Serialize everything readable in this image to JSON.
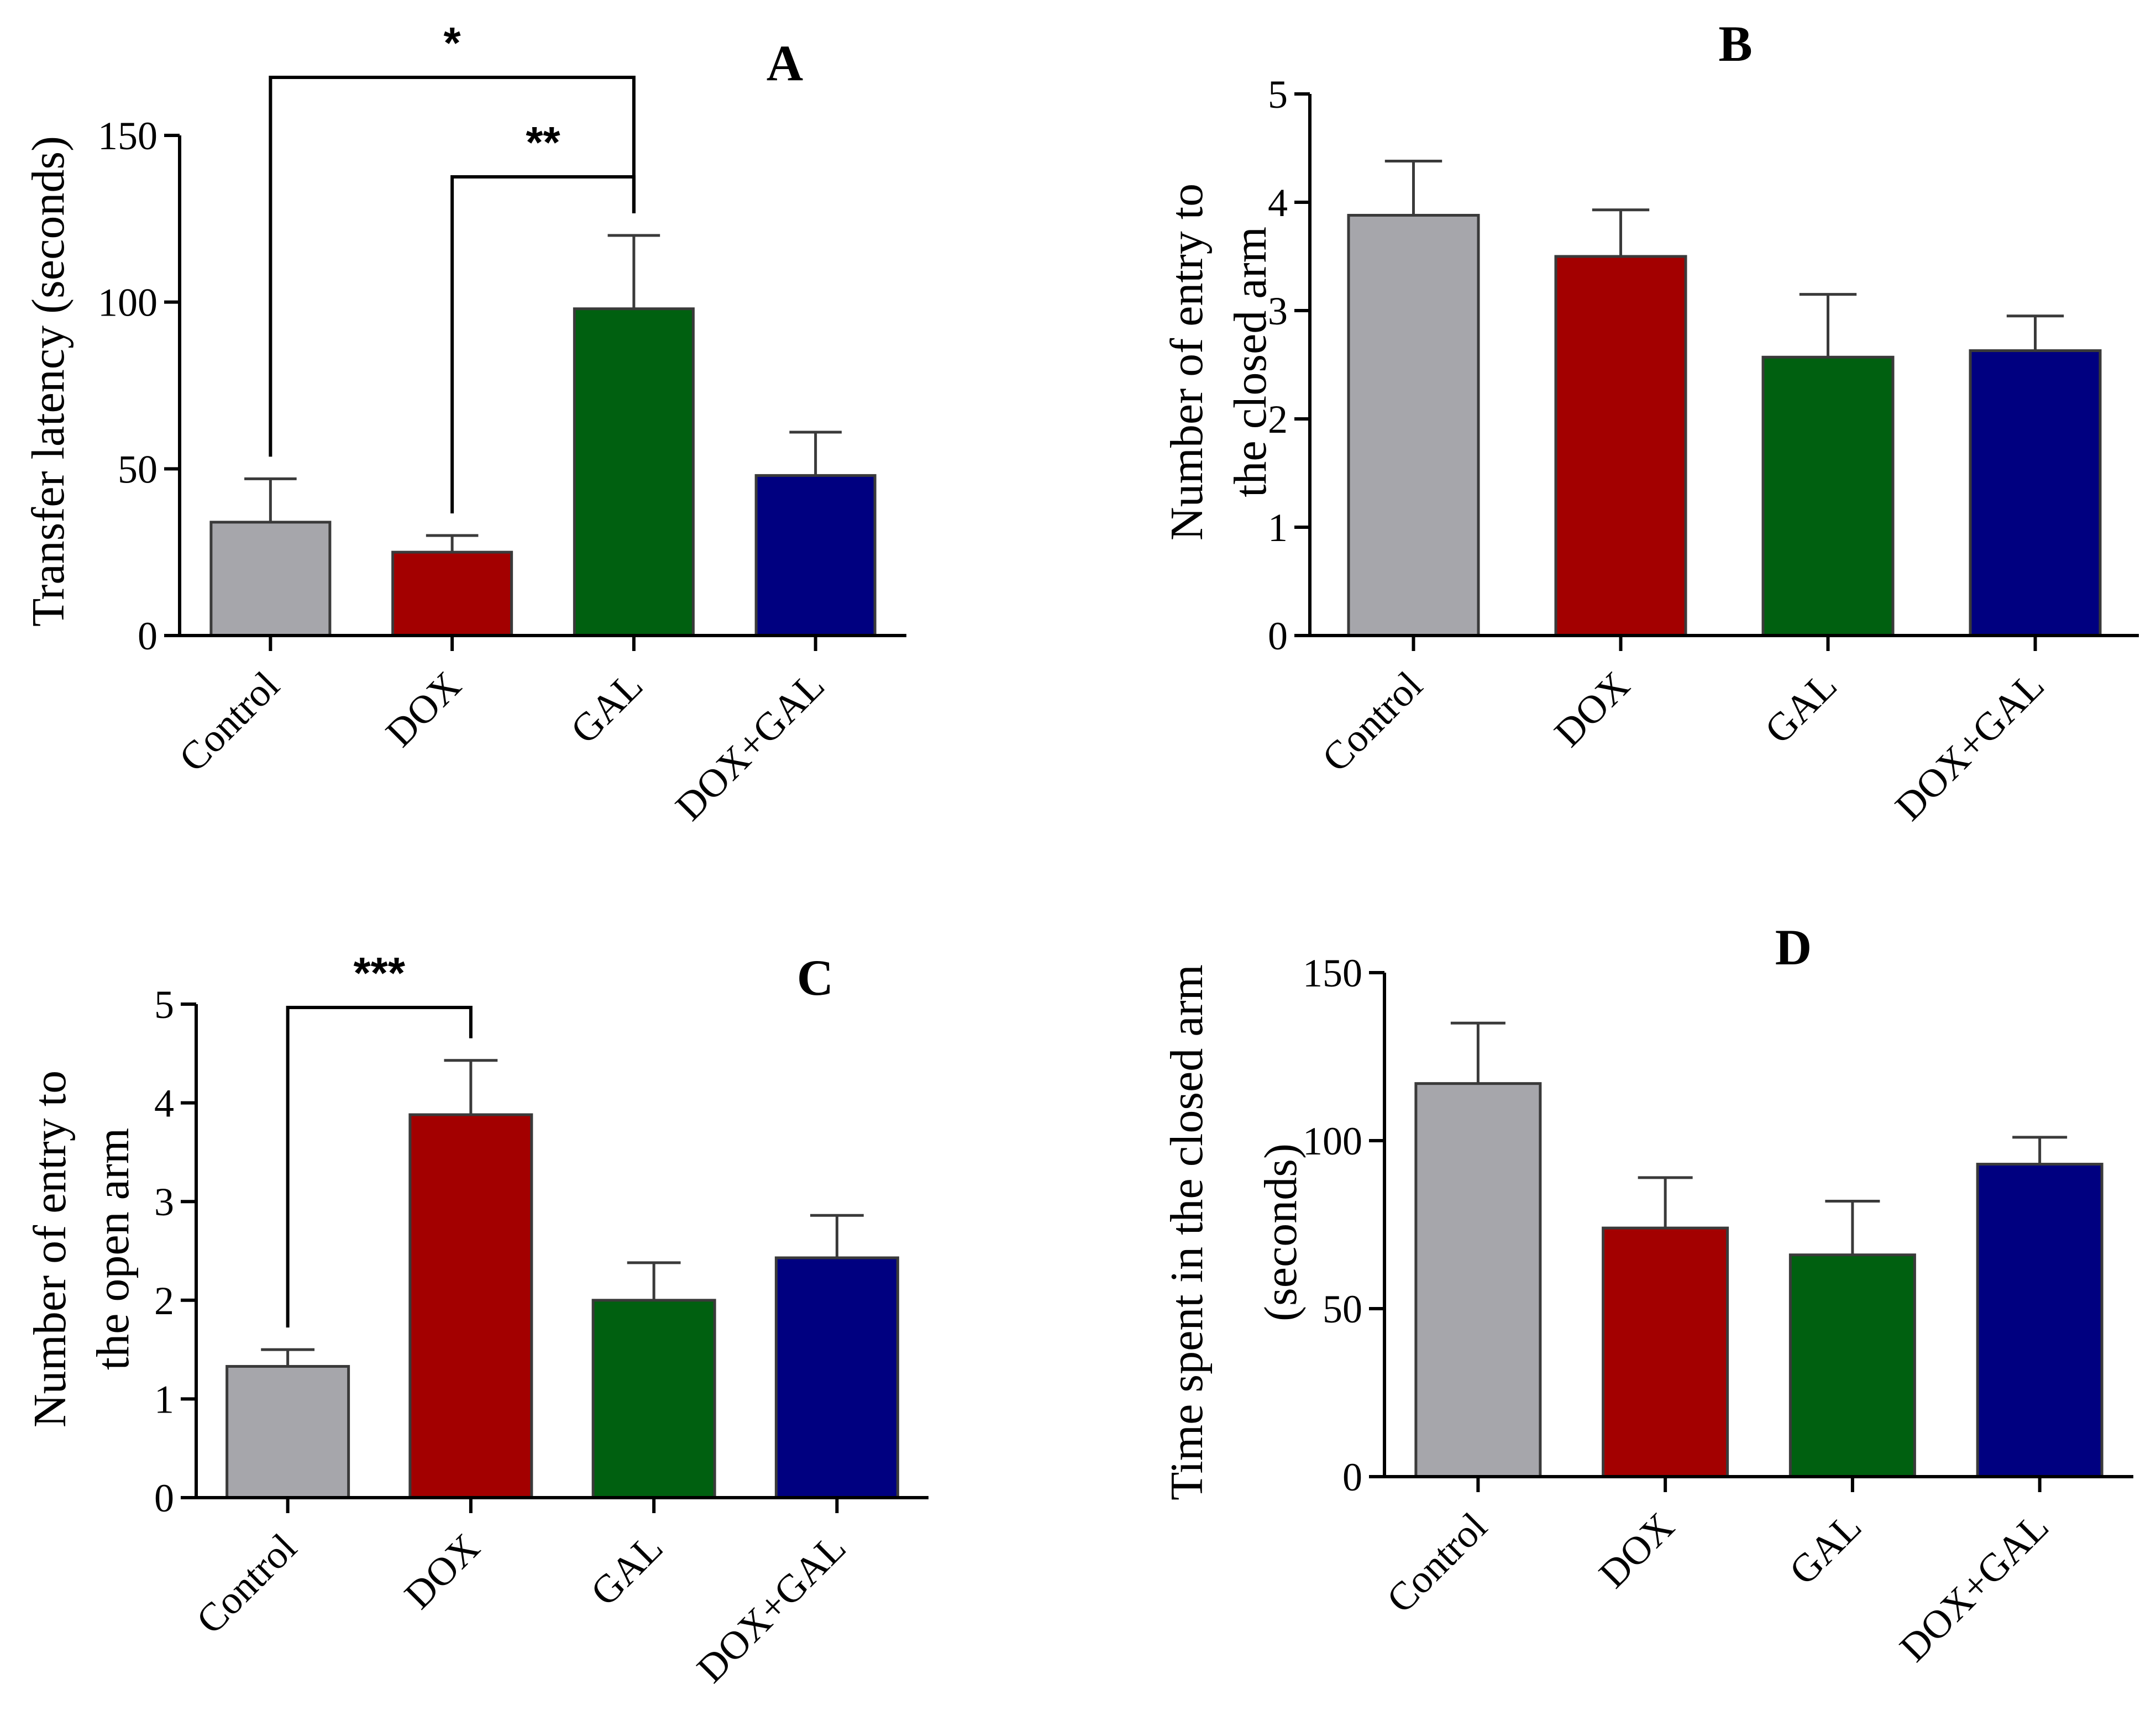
{
  "colors": {
    "Control": "#a6a6ab",
    "DOX": "#a30000",
    "GAL": "#006010",
    "DOX+GAL": "#000080"
  },
  "chart_data": [
    {
      "panel": "A",
      "type": "bar",
      "ylabel": "Transfer latency (seconds)",
      "ylim": [
        0,
        150
      ],
      "yticks": [
        0,
        50,
        100,
        150
      ],
      "categories": [
        "Control",
        "DOX",
        "GAL",
        "DOX+GAL"
      ],
      "values": [
        34,
        25,
        98,
        48
      ],
      "errors": [
        13,
        5,
        22,
        13
      ],
      "significance": [
        {
          "from": "Control",
          "to": "GAL",
          "label": "*"
        },
        {
          "from": "DOX",
          "to": "GAL",
          "label": "**"
        }
      ]
    },
    {
      "panel": "B",
      "type": "bar",
      "ylabel_lines": [
        "Number of entry to",
        "the closed arm"
      ],
      "ylim": [
        0,
        5
      ],
      "yticks": [
        0,
        1,
        2,
        3,
        4,
        5
      ],
      "categories": [
        "Control",
        "DOX",
        "GAL",
        "DOX+GAL"
      ],
      "values": [
        3.88,
        3.5,
        2.57,
        2.63
      ],
      "errors": [
        0.5,
        0.43,
        0.58,
        0.32
      ],
      "significance": []
    },
    {
      "panel": "C",
      "type": "bar",
      "ylabel_lines": [
        "Number of entry to",
        "the open arm"
      ],
      "ylim": [
        0,
        5
      ],
      "yticks": [
        0,
        1,
        2,
        3,
        4,
        5
      ],
      "categories": [
        "Control",
        "DOX",
        "GAL",
        "DOX+GAL"
      ],
      "values": [
        1.33,
        3.88,
        2.0,
        2.43
      ],
      "errors": [
        0.17,
        0.55,
        0.38,
        0.43
      ],
      "significance": [
        {
          "from": "Control",
          "to": "DOX",
          "label": "***"
        }
      ]
    },
    {
      "panel": "D",
      "type": "bar",
      "ylabel_lines": [
        "Time spent in the closed arm",
        "(seconds)"
      ],
      "ylim": [
        0,
        150
      ],
      "yticks": [
        0,
        50,
        100,
        150
      ],
      "categories": [
        "Control",
        "DOX",
        "GAL",
        "DOX+GAL"
      ],
      "values": [
        117,
        74,
        66,
        93
      ],
      "errors": [
        18,
        15,
        16,
        8
      ],
      "significance": []
    }
  ]
}
